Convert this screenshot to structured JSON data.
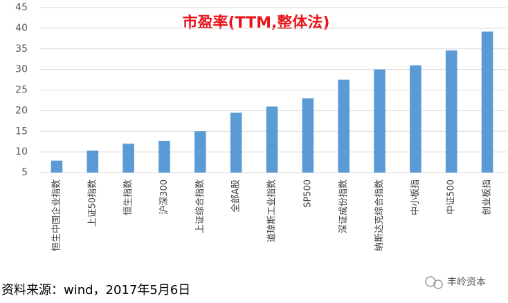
{
  "chart_data": {
    "type": "bar",
    "title": "市盈率(TTM,整体法)",
    "categories": [
      "恒生中国企业指数",
      "上证50指数",
      "恒生指数",
      "沪深300",
      "上证综合指数",
      "全部A股",
      "道琼斯工业指数",
      "SP500",
      "深证成份指数",
      "纳斯达克综合指数",
      "中小板指",
      "中证500",
      "创业板指"
    ],
    "values": [
      7.9,
      10.3,
      12.0,
      12.7,
      15.0,
      19.5,
      21.0,
      23.0,
      27.5,
      30.0,
      31.0,
      34.6,
      39.2
    ],
    "color": "#5b9bd5",
    "ylim": [
      5,
      45
    ],
    "yticks": [
      5,
      10,
      15,
      20,
      25,
      30,
      35,
      40,
      45
    ],
    "grid": true
  },
  "source": "资料来源：wind，2017年5月6日",
  "watermark": "丰岭资本"
}
